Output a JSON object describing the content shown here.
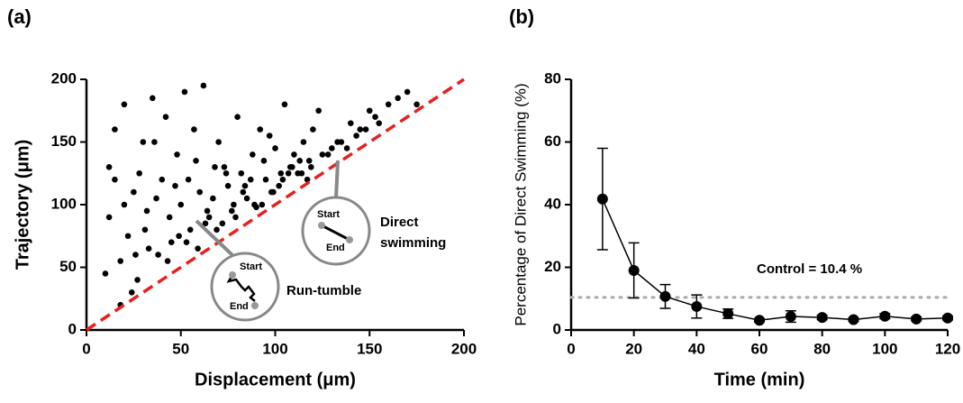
{
  "chart_data": [
    {
      "type": "scatter",
      "panel_label": "(a)",
      "xlabel": "Displacement (μm)",
      "ylabel": "Trajectory (μm)",
      "xlim": [
        0,
        200
      ],
      "ylim": [
        0,
        200
      ],
      "xticks": [
        0,
        50,
        100,
        150,
        200
      ],
      "yticks": [
        0,
        50,
        100,
        150,
        200
      ],
      "color": "#000000",
      "reference_line": {
        "slope": 1,
        "color": "#e8201e"
      },
      "x": [
        10,
        12,
        15,
        18,
        20,
        22,
        25,
        27,
        30,
        32,
        35,
        38,
        40,
        42,
        45,
        48,
        50,
        52,
        55,
        57,
        60,
        62,
        65,
        68,
        70,
        72,
        75,
        78,
        80,
        82,
        85,
        88,
        90,
        92,
        95,
        98,
        100,
        103,
        105,
        108,
        110,
        112,
        115,
        118,
        120,
        125,
        130,
        135,
        140,
        145,
        150,
        155,
        160,
        165,
        170,
        175,
        12,
        18,
        24,
        28,
        33,
        36,
        44,
        47,
        53,
        58,
        63,
        67,
        73,
        77,
        83,
        87,
        93,
        97,
        102,
        107,
        113,
        117,
        123,
        128,
        133,
        138,
        143,
        148,
        153,
        15,
        20,
        26,
        31,
        37,
        43,
        49,
        54,
        59,
        64,
        69,
        74,
        79,
        84,
        89,
        94,
        99,
        104,
        109,
        114,
        119
      ],
      "values": [
        45,
        130,
        160,
        20,
        180,
        75,
        110,
        40,
        150,
        95,
        185,
        60,
        120,
        170,
        70,
        140,
        100,
        190,
        80,
        160,
        110,
        195,
        90,
        130,
        150,
        85,
        115,
        100,
        170,
        125,
        105,
        140,
        98,
        160,
        120,
        110,
        145,
        125,
        180,
        130,
        140,
        125,
        150,
        135,
        160,
        140,
        145,
        150,
        165,
        160,
        175,
        165,
        180,
        185,
        190,
        180,
        90,
        55,
        30,
        125,
        65,
        150,
        90,
        115,
        70,
        135,
        85,
        105,
        130,
        95,
        110,
        120,
        100,
        155,
        115,
        125,
        135,
        120,
        175,
        140,
        150,
        145,
        155,
        160,
        170,
        120,
        100,
        60,
        80,
        105,
        55,
        75,
        120,
        65,
        95,
        80,
        125,
        90,
        115,
        100,
        135,
        110,
        120,
        130,
        125,
        130
      ],
      "insets": [
        {
          "label": [
            "Direct",
            "swimming"
          ],
          "start": "Start",
          "end": "End"
        },
        {
          "label": [
            "Run-tumble"
          ],
          "start": "Start",
          "end": "End"
        }
      ]
    },
    {
      "type": "line",
      "panel_label": "(b)",
      "xlabel": "Time (min)",
      "ylabel": "Percentage of Direct Swimming (%)",
      "xlim": [
        0,
        120
      ],
      "ylim": [
        0,
        80
      ],
      "xticks": [
        0,
        20,
        40,
        60,
        80,
        100,
        120
      ],
      "yticks": [
        0,
        20,
        40,
        60,
        80
      ],
      "color": "#000000",
      "x": [
        10,
        20,
        30,
        40,
        50,
        60,
        70,
        80,
        90,
        100,
        110,
        120
      ],
      "values": [
        41.8,
        19,
        10.7,
        7.5,
        5.2,
        3.1,
        4.3,
        4.0,
        3.3,
        4.4,
        3.5,
        3.8
      ],
      "errors": [
        16.2,
        8.8,
        3.8,
        3.7,
        1.5,
        0.5,
        1.8,
        0.7,
        0.5,
        0.8,
        0.6,
        0.6
      ],
      "reference_line": {
        "value": 10.4,
        "color": "#aaaaaa",
        "label": "Control = 10.4 %"
      }
    }
  ]
}
